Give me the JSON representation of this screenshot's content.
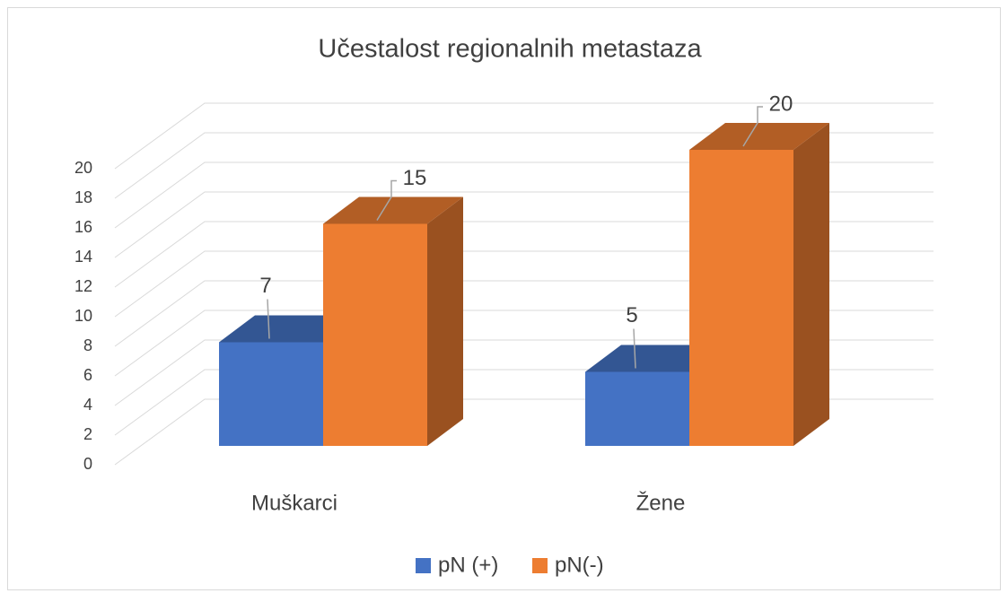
{
  "chart_data": {
    "type": "bar3d",
    "title": "Učestalost regionalnih metastaza",
    "categories": [
      "Muškarci",
      "Žene"
    ],
    "series": [
      {
        "name": "pN (+)",
        "color": "#4472c4",
        "values": [
          7,
          5
        ]
      },
      {
        "name": "pN(-)",
        "color": "#ed7d31",
        "values": [
          15,
          20
        ]
      }
    ],
    "ylim": [
      0,
      20
    ],
    "yticks": [
      0,
      2,
      4,
      6,
      8,
      10,
      12,
      14,
      16,
      18,
      20
    ],
    "grid": true,
    "legend": "bottom"
  }
}
